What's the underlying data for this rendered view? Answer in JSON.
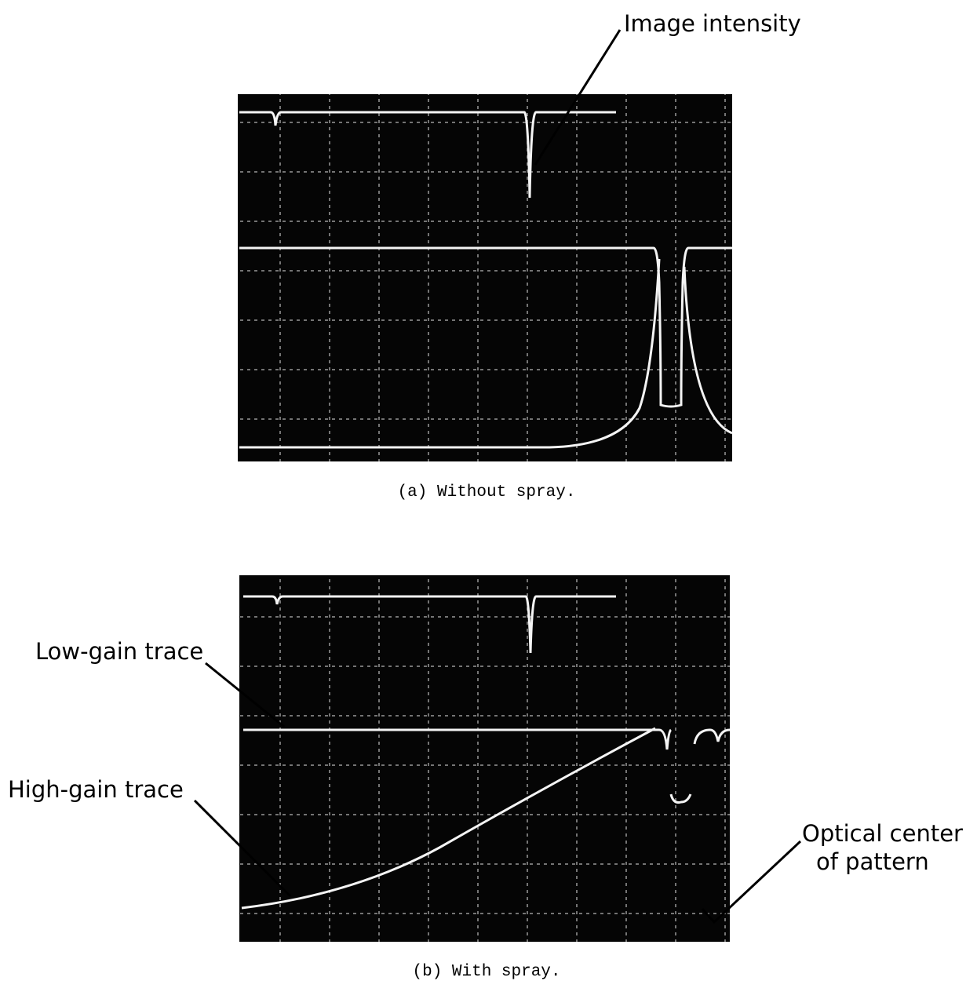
{
  "panels": [
    {
      "caption": "(a) Without spray.",
      "annotations": [
        "Image intensity"
      ]
    },
    {
      "caption": "(b) With spray.",
      "annotations": [
        "Low-gain trace",
        "High-gain trace",
        "Optical center",
        "of pattern"
      ]
    }
  ]
}
